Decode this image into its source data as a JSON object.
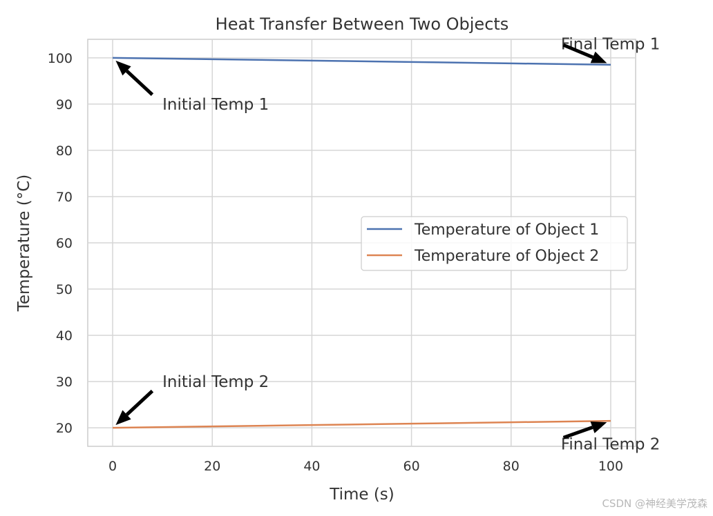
{
  "chart_data": {
    "type": "line",
    "title": "Heat Transfer Between Two Objects",
    "xlabel": "Time (s)",
    "ylabel": "Temperature (°C)",
    "xlim": [
      -5,
      105
    ],
    "ylim": [
      16,
      104
    ],
    "xticks": [
      0,
      20,
      40,
      60,
      80,
      100
    ],
    "yticks": [
      20,
      30,
      40,
      50,
      60,
      70,
      80,
      90,
      100
    ],
    "grid": true,
    "legend_position": "center-right",
    "x": [
      0,
      20,
      40,
      60,
      80,
      100
    ],
    "series": [
      {
        "name": "Temperature of Object 1",
        "color": "#4c72b0",
        "values": [
          100,
          99.7,
          99.4,
          99.1,
          98.8,
          98.5
        ]
      },
      {
        "name": "Temperature of Object 2",
        "color": "#dd8452",
        "values": [
          20,
          20.3,
          20.6,
          20.9,
          21.2,
          21.5
        ]
      }
    ],
    "annotations": [
      {
        "id": "init1",
        "text": "Initial Temp 1",
        "point": [
          0,
          100
        ],
        "text_at": [
          10,
          90
        ]
      },
      {
        "id": "final1",
        "text": "Final Temp 1",
        "point": [
          100,
          98.5
        ],
        "text_at": [
          90,
          103
        ]
      },
      {
        "id": "init2",
        "text": "Initial Temp 2",
        "point": [
          0,
          20
        ],
        "text_at": [
          10,
          30
        ]
      },
      {
        "id": "final2",
        "text": "Final Temp 2",
        "point": [
          100,
          21.5
        ],
        "text_at": [
          90,
          16.5
        ]
      }
    ]
  },
  "watermark": "CSDN @神经美学茂森"
}
